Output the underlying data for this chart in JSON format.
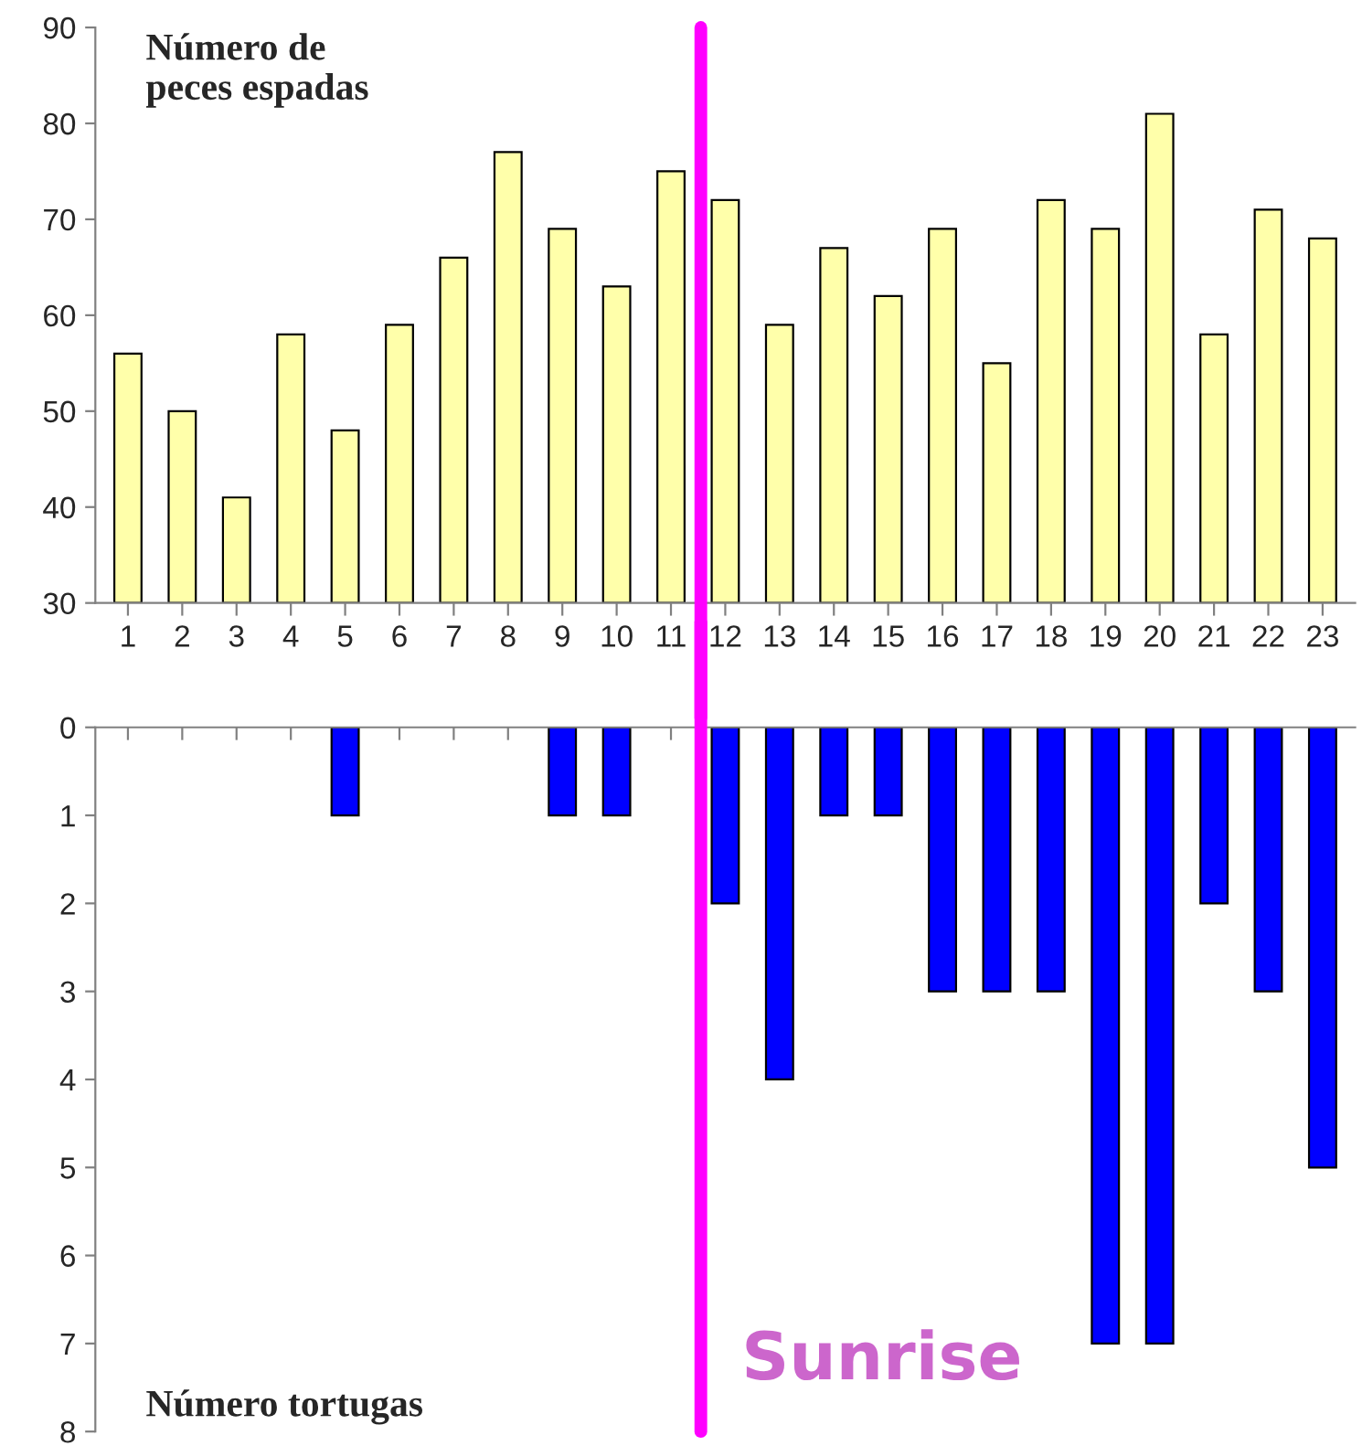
{
  "chart_data": [
    {
      "type": "bar",
      "title": "Número de\npeces espadas",
      "categories": [
        "1",
        "2",
        "3",
        "4",
        "5",
        "6",
        "7",
        "8",
        "9",
        "10",
        "11",
        "12",
        "13",
        "14",
        "15",
        "16",
        "17",
        "18",
        "19",
        "20",
        "21",
        "22",
        "23"
      ],
      "values": [
        56,
        50,
        41,
        58,
        48,
        59,
        66,
        77,
        69,
        63,
        75,
        72,
        59,
        67,
        62,
        69,
        55,
        72,
        69,
        81,
        58,
        71,
        68
      ],
      "color": "#ffffaa",
      "ylim": [
        30,
        90
      ],
      "yticks": [
        30,
        40,
        50,
        60,
        70,
        80,
        90
      ],
      "grid": false,
      "ref_lines": [
        {
          "axis": "x",
          "value": "12",
          "color": "#ff00ff"
        }
      ]
    },
    {
      "type": "bar",
      "title": "Número tortugas",
      "categories": [
        null,
        null,
        null,
        null,
        null,
        null,
        null,
        null,
        null,
        null,
        null,
        null,
        null,
        null,
        null,
        null,
        null,
        null,
        null,
        null,
        null,
        null,
        null
      ],
      "values": [
        0,
        0,
        0,
        0,
        1,
        0,
        0,
        0,
        1,
        1,
        0,
        2,
        4,
        1,
        1,
        3,
        3,
        3,
        7,
        7,
        2,
        3,
        5
      ],
      "color": "#0000ff",
      "ylim": [
        8,
        0
      ],
      "yticks": [
        0,
        1,
        2,
        3,
        4,
        5,
        6,
        7,
        8
      ],
      "grid": false,
      "ref_lines": [
        {
          "axis": "x",
          "value": "12",
          "color": "#ff00ff",
          "label": "Sunrise"
        }
      ]
    }
  ]
}
